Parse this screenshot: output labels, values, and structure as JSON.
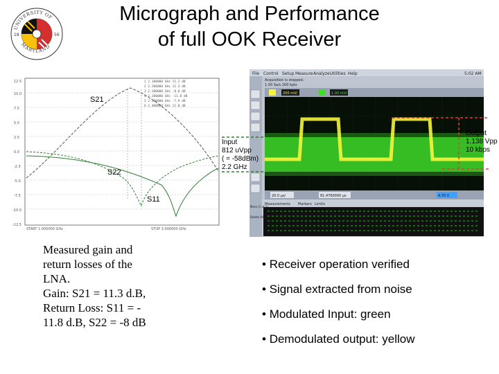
{
  "title": {
    "line1": "Micrograph and Performance",
    "line2": "of full OOK Receiver"
  },
  "logo": {
    "arc_text": "UNIVERSITY OF MARYLAND",
    "year_left": "18",
    "year_right": "56"
  },
  "sparam_plot": {
    "labels": {
      "s21": "S21",
      "s22": "S22",
      "s11": "S11"
    },
    "colors": {
      "s21": "#444444",
      "s22": "#2e7d32",
      "s11": "#2e7d32"
    }
  },
  "scope": {
    "menu": [
      "File",
      "Control",
      "Setup",
      "Measure",
      "Analyze",
      "Utilities",
      "Help"
    ],
    "time": "5:02 AM",
    "status_line1": "Acquisition is stopped.",
    "status_line2": "1.00 Sa/s   200 kpts",
    "ch1_value": "200 mV/",
    "ch2_value": "1.00 mV/",
    "timebase": "20.0 µs/",
    "position": "81.4760000 µs",
    "trigger": "4.70 V",
    "tabs": [
      "Measurements",
      "Markers",
      "Limits"
    ],
    "side_buttons": [
      "More (1 of 2)",
      "Delete All"
    ],
    "colors": {
      "trace_green": "#3fdc2a",
      "trace_yellow": "#f5f53a",
      "screen": "#061006",
      "chrome": "#bfc6d2"
    }
  },
  "input_annotation": [
    "Input",
    "812 uVpp",
    "( = -58dBm)",
    "2.2 GHz"
  ],
  "output_annotation": [
    "Output",
    "1.138 Vpp",
    "10 kbps"
  ],
  "caption": [
    "Measured gain and",
    "return losses of the",
    "LNA.",
    "Gain: S21 = 11.3 d.B,",
    "Return Loss: S11 = -",
    "11.8 d.B, S22 = -8 dB"
  ],
  "bullets": [
    "Receiver operation verified",
    "Signal extracted from noise",
    "Modulated Input: green",
    "Demodulated output: yellow"
  ]
}
